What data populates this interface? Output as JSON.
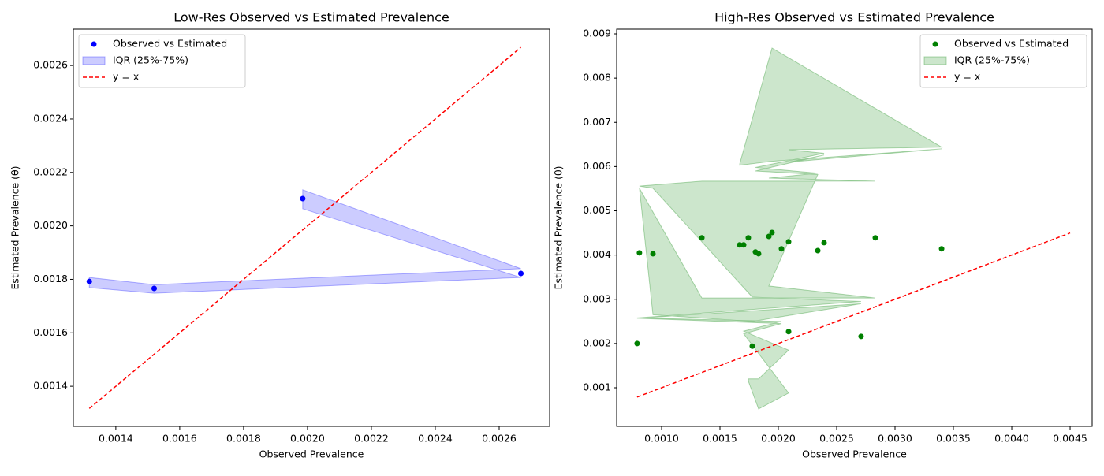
{
  "chart_data": [
    {
      "type": "scatter",
      "title": "Low-Res Observed vs Estimated Prevalence",
      "xlabel": "Observed Prevalence",
      "ylabel": "Estimated Prevalence (θ)",
      "xlim": [
        0.001267,
        0.002758
      ],
      "ylim": [
        0.00125,
        0.002736
      ],
      "xticks": [
        0.0014,
        0.0016,
        0.0018,
        {
          "value": 0.002,
          "label": "0.0020"
        },
        0.0022,
        0.0024,
        0.0026
      ],
      "yticks": [
        0.0014,
        0.0016,
        0.0018,
        {
          "value": 0.002,
          "label": "0.0020"
        },
        0.0022,
        0.0024,
        0.0026
      ],
      "legend": "upper left",
      "series": [
        {
          "name": "Observed vs Estimated",
          "type": "scatter",
          "color": "#0000ff",
          "x": [
            0.001317,
            0.00152,
            0.002668,
            0.001985
          ],
          "values": [
            0.001792,
            0.001766,
            0.001822,
            0.002102
          ]
        },
        {
          "name": "IQR (25%-75%)",
          "type": "band",
          "color": "#0000ff",
          "alpha": 0.2,
          "x": [
            0.001317,
            0.00152,
            0.002668,
            0.001985
          ],
          "lower": [
            0.001769,
            0.001748,
            0.001807,
            0.002064
          ],
          "upper": [
            0.001807,
            0.00178,
            0.00184,
            0.002135
          ]
        },
        {
          "name": "y = x",
          "type": "line",
          "color": "#ff0000",
          "dashed": true,
          "x": [
            0.001317,
            0.002668
          ],
          "values": [
            0.001317,
            0.002668
          ]
        }
      ]
    },
    {
      "type": "scatter",
      "title": "High-Res Observed vs Estimated Prevalence",
      "xlabel": "Observed Prevalence",
      "ylabel": "Estimated Prevalence (θ)",
      "xlim": [
        0.000615,
        0.004689
      ],
      "ylim": [
        0.000127,
        0.009107
      ],
      "xticks": [
        {
          "value": 0.001,
          "label": "0.0010"
        },
        0.0015,
        {
          "value": 0.002,
          "label": "0.0020"
        },
        0.0025,
        {
          "value": 0.003,
          "label": "0.0030"
        },
        0.0035,
        {
          "value": 0.004,
          "label": "0.0040"
        },
        0.0045
      ],
      "yticks": [
        0.001,
        0.002,
        0.003,
        0.004,
        0.005,
        0.006,
        0.007,
        0.008,
        0.009
      ],
      "legend": "upper right",
      "series": [
        {
          "name": "Observed vs Estimated",
          "type": "scatter",
          "color": "#008000",
          "x": [
            0.001669,
            0.001946,
            0.003399,
            0.002088,
            0.002392,
            0.001804,
            0.002338,
            0.001919,
            0.002831,
            0.001345,
            0.00081,
            0.000926,
            0.001777,
            0.002709,
            0.00079,
            0.002027,
            0.001703,
            0.002088,
            0.001831,
            0.001743
          ],
          "values": [
            0.00423,
            0.00451,
            0.00414,
            0.0043,
            0.00428,
            0.00407,
            0.0041,
            0.00442,
            0.00439,
            0.00439,
            0.00405,
            0.00403,
            0.00194,
            0.00216,
            0.002,
            0.00414,
            0.00423,
            0.00227,
            0.00403,
            0.00439
          ]
        },
        {
          "name": "IQR (25%-75%)",
          "type": "band",
          "color": "#008000",
          "alpha": 0.2,
          "x": [
            0.001669,
            0.001946,
            0.003399,
            0.002088,
            0.002392,
            0.001804,
            0.002338,
            0.001919,
            0.002831,
            0.001345,
            0.00081,
            0.000926,
            0.001777,
            0.002709,
            0.00079,
            0.002027,
            0.001703,
            0.002088,
            0.001831,
            0.001743
          ],
          "lower": [
            0.00603,
            0.00612,
            0.0064,
            0.0061,
            0.00626,
            0.0059,
            0.00582,
            0.0033,
            0.00303,
            0.00303,
            0.00551,
            0.00265,
            0.0025,
            0.0029,
            0.00257,
            0.00245,
            0.00222,
            0.00088,
            0.00052,
            0.00115
          ],
          "upper": [
            0.00606,
            0.00868,
            0.00644,
            0.00638,
            0.0063,
            0.00598,
            0.00585,
            0.00574,
            0.00567,
            0.00567,
            0.00556,
            0.00551,
            0.00305,
            0.00295,
            0.00258,
            0.0025,
            0.00228,
            0.00185,
            0.0012,
            0.0012
          ]
        },
        {
          "name": "y = x",
          "type": "line",
          "color": "#ff0000",
          "dashed": true,
          "x": [
            0.00079,
            0.0045
          ],
          "values": [
            0.00079,
            0.0045
          ]
        }
      ]
    }
  ]
}
